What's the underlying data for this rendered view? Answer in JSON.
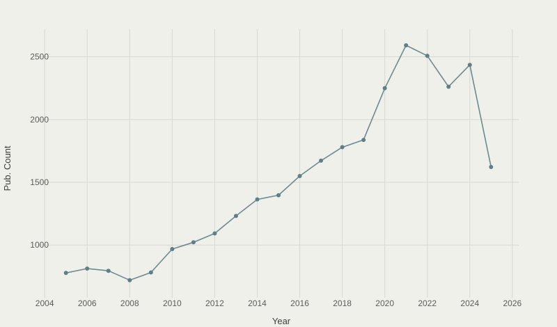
{
  "chart_data": {
    "type": "line",
    "title": "",
    "xlabel": "Year",
    "ylabel": "Pub. Count",
    "xlim": [
      2003.7,
      2026.3
    ],
    "ylim": [
      580,
      2720
    ],
    "x_ticks": [
      2004,
      2006,
      2008,
      2010,
      2012,
      2014,
      2016,
      2018,
      2020,
      2022,
      2024,
      2026
    ],
    "y_ticks": [
      1000,
      1500,
      2000,
      2500
    ],
    "grid": true,
    "colors": {
      "line": "#6a8a91",
      "marker": "#5f7f87",
      "grid": "#d8d8d3",
      "background": "#f0f0eb"
    },
    "series": [
      {
        "x": [
          2005,
          2006,
          2007,
          2008,
          2009,
          2010,
          2011,
          2012,
          2013,
          2014,
          2015,
          2016,
          2017,
          2018,
          2019,
          2020,
          2021,
          2022,
          2023,
          2024,
          2025
        ],
        "y": [
          778,
          813,
          795,
          720,
          782,
          968,
          1022,
          1093,
          1232,
          1364,
          1397,
          1550,
          1673,
          1780,
          1838,
          2250,
          2592,
          2508,
          2262,
          2436,
          1622
        ]
      }
    ]
  }
}
